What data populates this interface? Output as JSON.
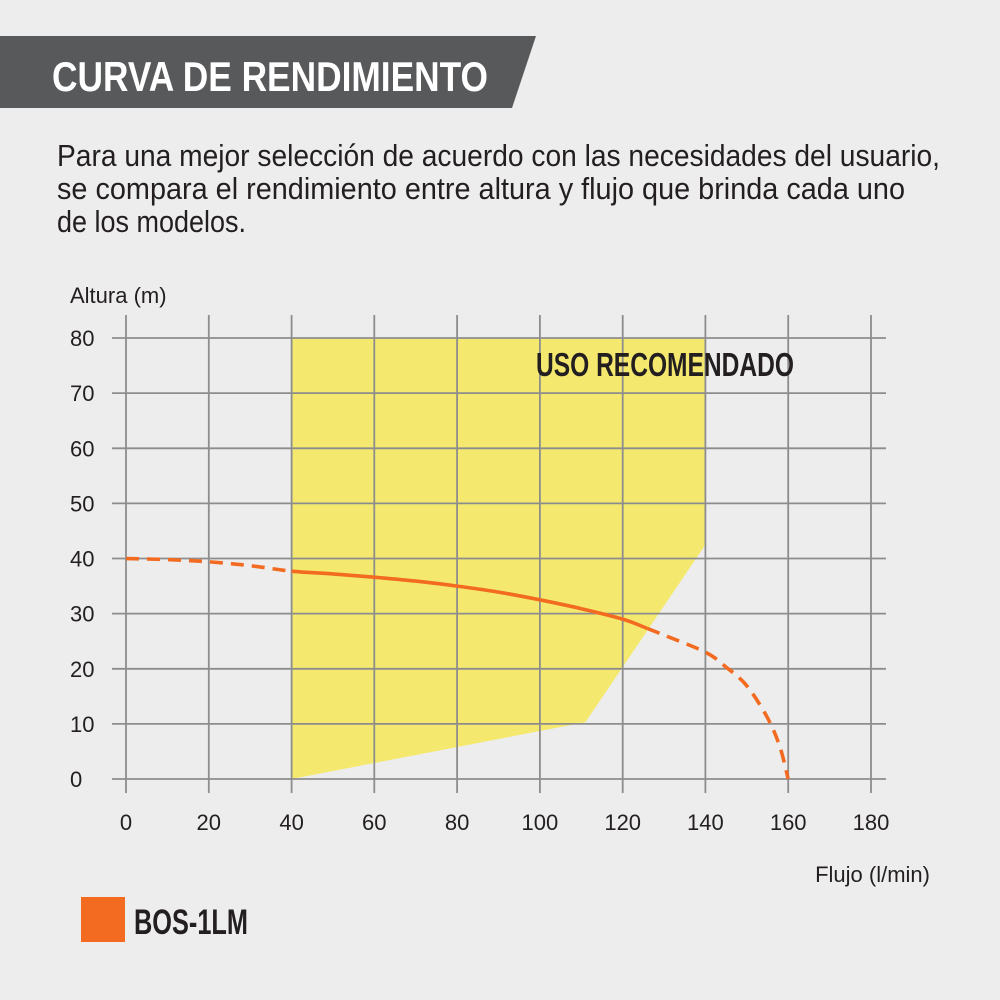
{
  "header": {
    "title": "CURVA DE RENDIMIENTO"
  },
  "description": {
    "lines": [
      "Para una mejor selección de acuerdo con las necesidades del usuario,",
      "se compara el rendimiento entre altura y flujo que brinda cada uno",
      "de los modelos."
    ]
  },
  "colors": {
    "background": "#ededed",
    "header_bg": "#58595b",
    "title_text": "#ffffff",
    "text": "#231f20",
    "grid": "#8d8d8d"
  },
  "chart_data": {
    "type": "line",
    "xlabel": "Flujo (l/min)",
    "ylabel": "Altura (m)",
    "xlim": [
      0,
      180
    ],
    "ylim": [
      0,
      80
    ],
    "xticks": [
      0,
      20,
      40,
      60,
      80,
      100,
      120,
      140,
      160,
      180
    ],
    "yticks": [
      0,
      10,
      20,
      30,
      40,
      50,
      60,
      70,
      80
    ],
    "grid": true,
    "legend": {
      "position": "bottom-left"
    },
    "region": {
      "label": "USO RECOMENDADO",
      "color": "#f4e96e",
      "points": [
        [
          40,
          80
        ],
        [
          140,
          80
        ],
        [
          140,
          42.5
        ],
        [
          111,
          10.3
        ],
        [
          40,
          0
        ]
      ]
    },
    "series": [
      {
        "name": "BOS-1LM",
        "color": "#f26b21",
        "solid_segment_x": [
          40,
          126
        ],
        "x": [
          0,
          10,
          20,
          30,
          40,
          50,
          60,
          70,
          80,
          90,
          100,
          110,
          120,
          126,
          130,
          140,
          145,
          150,
          155,
          158,
          160
        ],
        "y": [
          40,
          39.8,
          39.4,
          38.7,
          37.7,
          37.2,
          36.6,
          35.9,
          35.0,
          33.9,
          32.5,
          30.9,
          29.0,
          27.3,
          26.1,
          23.0,
          20.3,
          16.9,
          11.1,
          5.8,
          0
        ]
      }
    ]
  }
}
